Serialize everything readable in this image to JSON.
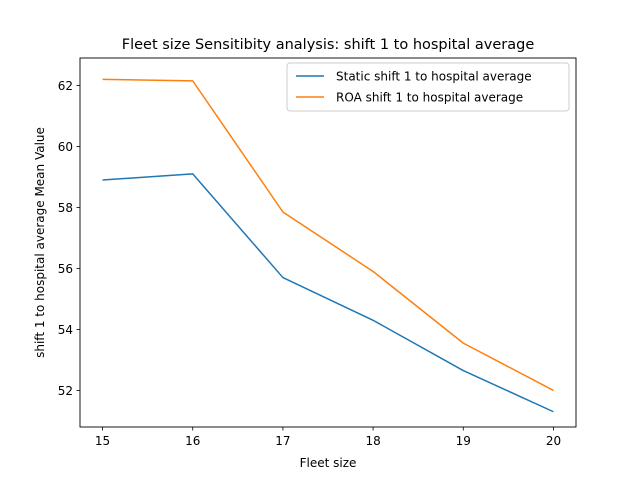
{
  "chart_data": {
    "type": "line",
    "title": "Fleet size Sensitibity analysis: shift 1 to hospital average",
    "xlabel": "Fleet size",
    "ylabel": "shift 1 to hospital average Mean Value",
    "x": [
      15,
      16,
      17,
      18,
      19,
      20
    ],
    "xticks": [
      "15",
      "16",
      "17",
      "18",
      "19",
      "20"
    ],
    "yticks": [
      "52",
      "54",
      "56",
      "58",
      "60",
      "62"
    ],
    "xlim": [
      14.75,
      20.25
    ],
    "ylim": [
      50.8,
      62.9
    ],
    "grid": false,
    "legend_position": "upper right",
    "series": [
      {
        "name": "Static shift 1 to hospital average",
        "color": "#1f77b4",
        "values": [
          58.9,
          59.1,
          55.7,
          54.3,
          52.65,
          51.3
        ]
      },
      {
        "name": "ROA shift 1 to hospital average",
        "color": "#ff7f0e",
        "values": [
          62.2,
          62.15,
          57.85,
          55.9,
          53.55,
          52.0
        ]
      }
    ]
  }
}
